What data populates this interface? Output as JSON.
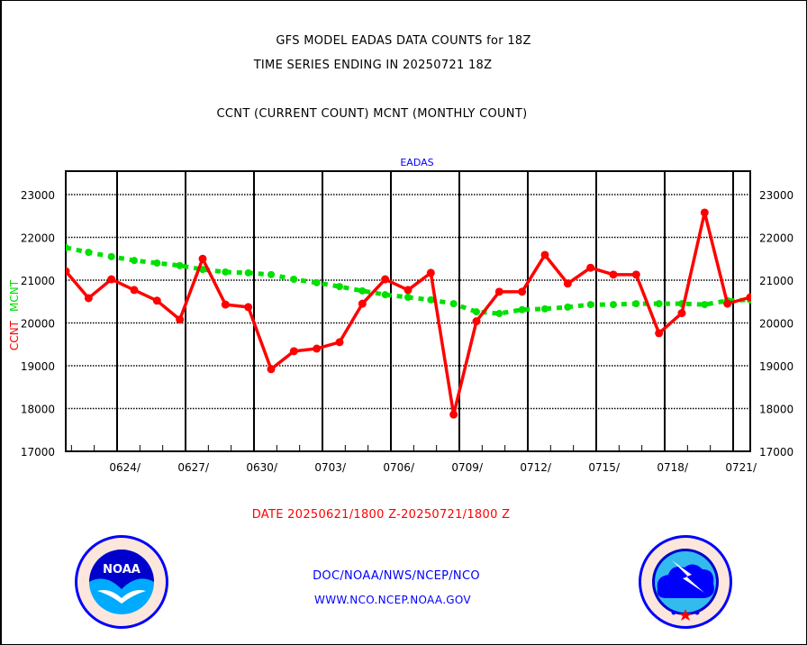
{
  "header": {
    "title_line1": "GFS MODEL EADAS DATA COUNTS for 18Z",
    "title_line2": "TIME SERIES ENDING IN 20250721 18Z",
    "subtitle": "CCNT (CURRENT COUNT) MCNT (MONTHLY COUNT)"
  },
  "footer": {
    "date_range": "DATE 20250621/1800 Z-20250721/1800 Z",
    "org_path": "DOC/NOAA/NWS/NCEP/NCO",
    "website": "WWW.NCO.NCEP.NOAA.GOV",
    "left_logo": "NOAA",
    "left_logo_ring_text": "NATIONAL OCEANIC AND ATMOSPHERIC ADMINISTRATION · U.S. DEPARTMENT OF COMMERCE",
    "right_logo_ring_text": "NATIONAL WEATHER SERVICE"
  },
  "colors": {
    "ccnt": "#ff0000",
    "mcnt": "#00e000",
    "title_text": "#000000",
    "date_text": "#ff0000",
    "footer_text": "#0000ff",
    "plot_label": "#0000ff"
  },
  "chart_data": {
    "type": "line",
    "title": "EADAS",
    "xlabel": "",
    "ylabel_left_parts": [
      "CCNT",
      "MCNT"
    ],
    "ylim": [
      17000,
      23500
    ],
    "yticks": [
      17000,
      18000,
      19000,
      20000,
      21000,
      22000,
      23000
    ],
    "ytick_labels": [
      "17000",
      "18000",
      "19000",
      "20000",
      "21000",
      "22000",
      "23000"
    ],
    "xtick_labels": [
      "0624/",
      "0627/",
      "0630/",
      "0703/",
      "0706/",
      "0709/",
      "0712/",
      "0715/",
      "0718/",
      "0721/"
    ],
    "xtick_day_index": [
      3,
      6,
      9,
      12,
      15,
      18,
      21,
      24,
      27,
      30
    ],
    "grid": true,
    "x": [
      "0621",
      "0622",
      "0623",
      "0624",
      "0625",
      "0626",
      "0627",
      "0628",
      "0629",
      "0630",
      "0701",
      "0702",
      "0703",
      "0704",
      "0705",
      "0706",
      "0707",
      "0708",
      "0709",
      "0710",
      "0711",
      "0712",
      "0713",
      "0714",
      "0715",
      "0716",
      "0717",
      "0718",
      "0719",
      "0720",
      "0721"
    ],
    "series": [
      {
        "name": "CCNT",
        "style": "solid",
        "values": [
          21210,
          20580,
          21020,
          20770,
          20520,
          20080,
          21500,
          20430,
          20370,
          18920,
          19340,
          19400,
          19550,
          20450,
          21020,
          20770,
          21170,
          17860,
          20040,
          20730,
          20730,
          21590,
          20920,
          21290,
          21130,
          21130,
          19760,
          20230,
          22580,
          20450,
          20600
        ]
      },
      {
        "name": "MCNT",
        "style": "dotted",
        "values": [
          21760,
          21650,
          21550,
          21460,
          21400,
          21340,
          21250,
          21190,
          21170,
          21130,
          21020,
          20940,
          20850,
          20750,
          20660,
          20600,
          20540,
          20450,
          20260,
          20220,
          20310,
          20330,
          20370,
          20430,
          20430,
          20450,
          20450,
          20450,
          20430,
          20520,
          20540
        ]
      }
    ]
  }
}
